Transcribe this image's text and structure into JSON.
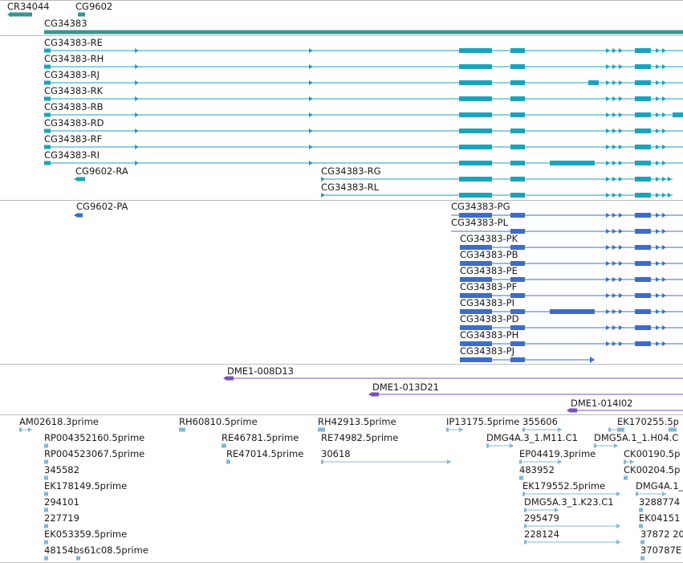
{
  "colors": {
    "top_gene": "#3a9594",
    "transcript_r": "#1aa3bd",
    "protein_p": "#3c6dc8",
    "clone": "#7a52b8",
    "est": "#80b8d8",
    "separator": "#bcbcbc"
  },
  "gene_track": {
    "labels": [
      "CR34044",
      "CG9602",
      "CG34383"
    ]
  },
  "transcripts": {
    "labels": [
      "CG34383-RE",
      "CG34383-RH",
      "CG34383-RJ",
      "CG34383-RK",
      "CG34383-RB",
      "CG34383-RD",
      "CG34383-RF",
      "CG34383-RI",
      "CG9602-RA",
      "CG34383-RG",
      "CG34383-RL"
    ]
  },
  "proteins": {
    "labels": [
      "CG9602-PA",
      "CG34383-PG",
      "CG34383-PL",
      "CG34383-PK",
      "CG34383-PB",
      "CG34383-PE",
      "CG34383-PF",
      "CG34383-PI",
      "CG34383-PD",
      "CG34383-PH",
      "CG34383-PJ"
    ]
  },
  "clones": {
    "labels": [
      "DME1-008D13",
      "DME1-013D21",
      "DME1-014I02"
    ]
  },
  "ests": {
    "labels": [
      "AM02618.3prime",
      "RH60810.5prime",
      "RH42913.5prime",
      "IP13175.5prime",
      "355606",
      "EK170255.5p",
      "RP004352160.5prime",
      "RE46781.5prime",
      "RE74982.5prime",
      "DMG4A.3_1.M11.C1",
      "DMG5A.1_1.H04.C",
      "RP004523067.5prime",
      "RE47014.5prime",
      "30618",
      "EP04419.3prime",
      "CK00190.5p",
      "345582",
      "483952",
      "CK00204.5p",
      "EK178149.5prime",
      "EK179552.5prime",
      "DMG4A.1_",
      "294101",
      "DMG5A.3_1.K23.C1",
      "3288774",
      "227719",
      "295479",
      "EK04151",
      "EK053359.5prime",
      "228124",
      "37872 20",
      "48154bs61c08.5prime",
      "370787E"
    ]
  }
}
